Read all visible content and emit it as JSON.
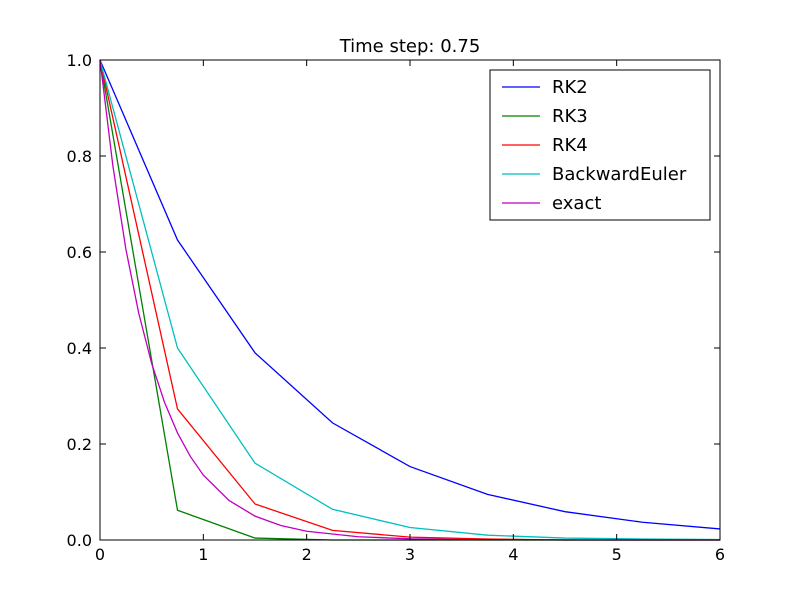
{
  "chart_data": {
    "type": "line",
    "title": "Time step: 0.75",
    "xlabel": "",
    "ylabel": "",
    "xlim": [
      0,
      6
    ],
    "ylim": [
      0,
      1.0
    ],
    "x_ticks": [
      "0",
      "1",
      "2",
      "3",
      "4",
      "5",
      "6"
    ],
    "y_ticks": [
      "0.0",
      "0.2",
      "0.4",
      "0.6",
      "0.8",
      "1.0"
    ],
    "grid": false,
    "legend_position": "top-right",
    "series": [
      {
        "name": "RK2",
        "color": "#0000ff",
        "x": [
          0,
          0.75,
          1.5,
          2.25,
          3.0,
          3.75,
          4.5,
          5.25,
          6.0
        ],
        "y": [
          1.0,
          0.625,
          0.39,
          0.244,
          0.153,
          0.095,
          0.059,
          0.037,
          0.023
        ]
      },
      {
        "name": "RK3",
        "color": "#008000",
        "x": [
          0,
          0.75,
          1.5,
          2.25,
          3.0,
          3.75,
          4.5,
          5.25,
          6.0
        ],
        "y": [
          1.0,
          0.062,
          0.004,
          0.0,
          0.0,
          0.0,
          0.0,
          0.0,
          0.0
        ]
      },
      {
        "name": "RK4",
        "color": "#ff0000",
        "x": [
          0,
          0.75,
          1.5,
          2.25,
          3.0,
          3.75,
          4.5,
          5.25,
          6.0
        ],
        "y": [
          1.0,
          0.273,
          0.075,
          0.02,
          0.006,
          0.002,
          0.0,
          0.0,
          0.0
        ]
      },
      {
        "name": "BackwardEuler",
        "color": "#00bfbf",
        "x": [
          0,
          0.75,
          1.5,
          2.25,
          3.0,
          3.75,
          4.5,
          5.25,
          6.0
        ],
        "y": [
          1.0,
          0.4,
          0.16,
          0.064,
          0.026,
          0.01,
          0.004,
          0.002,
          0.001
        ]
      },
      {
        "name": "exact",
        "color": "#bf00bf",
        "x": [
          0,
          0.125,
          0.25,
          0.375,
          0.5,
          0.625,
          0.75,
          0.875,
          1.0,
          1.25,
          1.5,
          1.75,
          2.0,
          2.5,
          3.0,
          3.5,
          4.0,
          5.0,
          6.0
        ],
        "y": [
          1.0,
          0.7788,
          0.6065,
          0.4724,
          0.3679,
          0.2865,
          0.2231,
          0.1738,
          0.1353,
          0.0821,
          0.0498,
          0.0302,
          0.0183,
          0.0067,
          0.0025,
          0.0009,
          0.0003,
          0.0,
          0.0
        ]
      }
    ]
  }
}
